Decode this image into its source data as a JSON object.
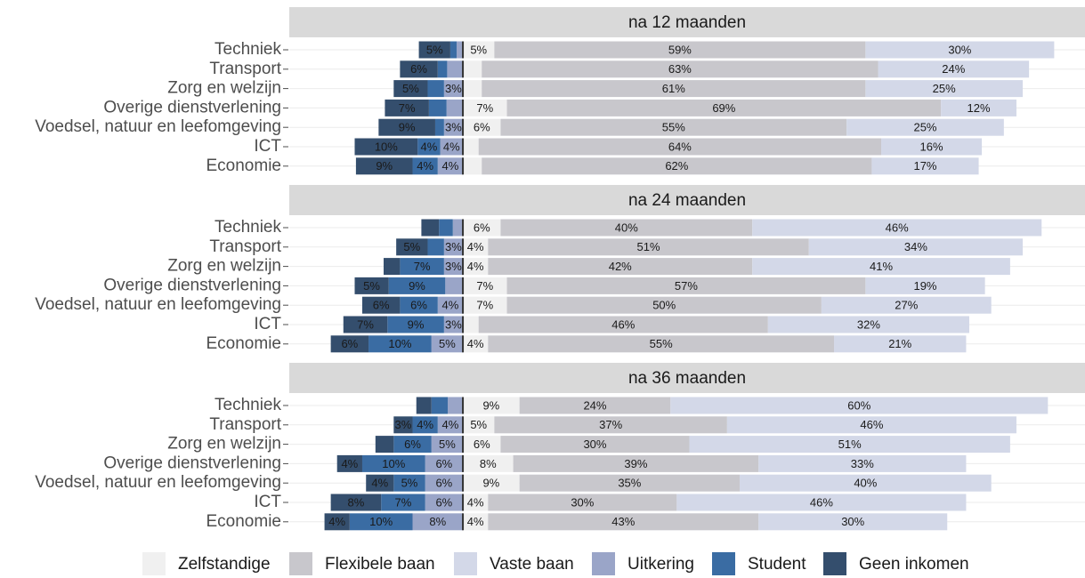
{
  "chart_data": [
    {
      "type": "bar",
      "orientation": "horizontal",
      "stacked": true,
      "diverging": true,
      "title": "na 12 maanden",
      "categories": [
        "Techniek",
        "Transport",
        "Zorg en welzijn",
        "Overige dienstverlening",
        "Voedsel, natuur en leefomgeving",
        "ICT",
        "Economie"
      ],
      "xlim": [
        -27.6,
        98.9
      ],
      "series": [
        {
          "name": "Zelfstandige",
          "color": "#f0f0f0",
          "side": "right",
          "values": [
            5,
            3,
            3,
            7,
            6,
            2.5,
            3
          ],
          "value_labels": [
            "5%",
            null,
            null,
            "7%",
            "6%",
            null,
            null
          ]
        },
        {
          "name": "Flexibele baan",
          "color": "#c8c7cc",
          "side": "right",
          "values": [
            59,
            63,
            61,
            69,
            55,
            64,
            62
          ],
          "value_labels": [
            "59%",
            "63%",
            "61%",
            "69%",
            "55%",
            "64%",
            "62%"
          ]
        },
        {
          "name": "Vaste baan",
          "color": "#d3d8e8",
          "side": "right",
          "values": [
            30,
            24,
            25,
            12,
            25,
            16,
            17
          ],
          "value_labels": [
            "30%",
            "24%",
            "25%",
            "12%",
            "25%",
            "16%",
            "17%"
          ]
        },
        {
          "name": "Uitkering",
          "color": "#9aa5c8",
          "side": "left",
          "values": [
            1,
            2.5,
            3,
            2.6,
            3,
            3.6,
            4
          ],
          "value_labels": [
            null,
            null,
            "3%",
            null,
            "3%",
            "4%",
            "4%"
          ]
        },
        {
          "name": "Student",
          "color": "#3a6ca3",
          "side": "left",
          "values": [
            1,
            1.5,
            2.6,
            2.8,
            1.4,
            3.6,
            4
          ],
          "value_labels": [
            null,
            null,
            null,
            null,
            null,
            "4%",
            "4%"
          ]
        },
        {
          "name": "Geen inkomen",
          "color": "#344e6d",
          "side": "left",
          "values": [
            5,
            6,
            5.4,
            7,
            9,
            10,
            9
          ],
          "value_labels": [
            "5%",
            "6%",
            "5%",
            "7%",
            "9%",
            "10%",
            "9%"
          ]
        }
      ]
    },
    {
      "type": "bar",
      "orientation": "horizontal",
      "stacked": true,
      "diverging": true,
      "title": "na 24 maanden",
      "categories": [
        "Techniek",
        "Transport",
        "Zorg en welzijn",
        "Overige dienstverlening",
        "Voedsel, natuur en leefomgeving",
        "ICT",
        "Economie"
      ],
      "xlim": [
        -27.6,
        98.9
      ],
      "series": [
        {
          "name": "Zelfstandige",
          "color": "#f0f0f0",
          "side": "right",
          "values": [
            6,
            4,
            4,
            7,
            7,
            2.5,
            4
          ],
          "value_labels": [
            "6%",
            "4%",
            "4%",
            "7%",
            "7%",
            null,
            "4%"
          ]
        },
        {
          "name": "Flexibele baan",
          "color": "#c8c7cc",
          "side": "right",
          "values": [
            40,
            51,
            42,
            57,
            50,
            46,
            55
          ],
          "value_labels": [
            "40%",
            "51%",
            "42%",
            "57%",
            "50%",
            "46%",
            "55%"
          ]
        },
        {
          "name": "Vaste baan",
          "color": "#d3d8e8",
          "side": "right",
          "values": [
            46,
            34,
            41,
            19,
            27,
            32,
            21
          ],
          "value_labels": [
            "46%",
            "34%",
            "41%",
            "19%",
            "27%",
            "32%",
            "21%"
          ]
        },
        {
          "name": "Uitkering",
          "color": "#9aa5c8",
          "side": "left",
          "values": [
            1.6,
            3,
            3,
            2.8,
            4,
            3,
            5
          ],
          "value_labels": [
            null,
            "3%",
            "3%",
            null,
            "4%",
            "3%",
            "5%"
          ]
        },
        {
          "name": "Student",
          "color": "#3a6ca3",
          "side": "left",
          "values": [
            2.2,
            2.6,
            7,
            9,
            6,
            9,
            10
          ],
          "value_labels": [
            null,
            null,
            "7%",
            "9%",
            "6%",
            "9%",
            "10%"
          ]
        },
        {
          "name": "Geen inkomen",
          "color": "#344e6d",
          "side": "left",
          "values": [
            2.8,
            5,
            2.6,
            5.4,
            6,
            7,
            6
          ],
          "value_labels": [
            null,
            "5%",
            null,
            "5%",
            "6%",
            "7%",
            "6%"
          ]
        }
      ]
    },
    {
      "type": "bar",
      "orientation": "horizontal",
      "stacked": true,
      "diverging": true,
      "title": "na 36 maanden",
      "categories": [
        "Techniek",
        "Transport",
        "Zorg en welzijn",
        "Overige dienstverlening",
        "Voedsel, natuur en leefomgeving",
        "ICT",
        "Economie"
      ],
      "xlim": [
        -27.6,
        98.9
      ],
      "series": [
        {
          "name": "Zelfstandige",
          "color": "#f0f0f0",
          "side": "right",
          "values": [
            9,
            5,
            6,
            8,
            9,
            4,
            4
          ],
          "value_labels": [
            "9%",
            "5%",
            "6%",
            "8%",
            "9%",
            "4%",
            "4%"
          ]
        },
        {
          "name": "Flexibele baan",
          "color": "#c8c7cc",
          "side": "right",
          "values": [
            24,
            37,
            30,
            39,
            35,
            30,
            43
          ],
          "value_labels": [
            "24%",
            "37%",
            "30%",
            "39%",
            "35%",
            "30%",
            "43%"
          ]
        },
        {
          "name": "Vaste baan",
          "color": "#d3d8e8",
          "side": "right",
          "values": [
            60,
            46,
            51,
            33,
            40,
            46,
            30
          ],
          "value_labels": [
            "60%",
            "46%",
            "51%",
            "33%",
            "40%",
            "46%",
            "30%"
          ]
        },
        {
          "name": "Uitkering",
          "color": "#9aa5c8",
          "side": "left",
          "values": [
            2.4,
            4,
            5,
            6,
            6,
            6,
            8
          ],
          "value_labels": [
            null,
            "4%",
            "5%",
            "6%",
            "6%",
            "6%",
            "8%"
          ]
        },
        {
          "name": "Student",
          "color": "#3a6ca3",
          "side": "left",
          "values": [
            2.6,
            4,
            6,
            10,
            5,
            7,
            10
          ],
          "value_labels": [
            null,
            "4%",
            "6%",
            "10%",
            "5%",
            "7%",
            "10%"
          ]
        },
        {
          "name": "Geen inkomen",
          "color": "#344e6d",
          "side": "left",
          "values": [
            2.4,
            3,
            2.9,
            4,
            4.4,
            8,
            4
          ],
          "value_labels": [
            null,
            "3%",
            null,
            "4%",
            "4%",
            "8%",
            "4%"
          ]
        }
      ]
    }
  ]
}
